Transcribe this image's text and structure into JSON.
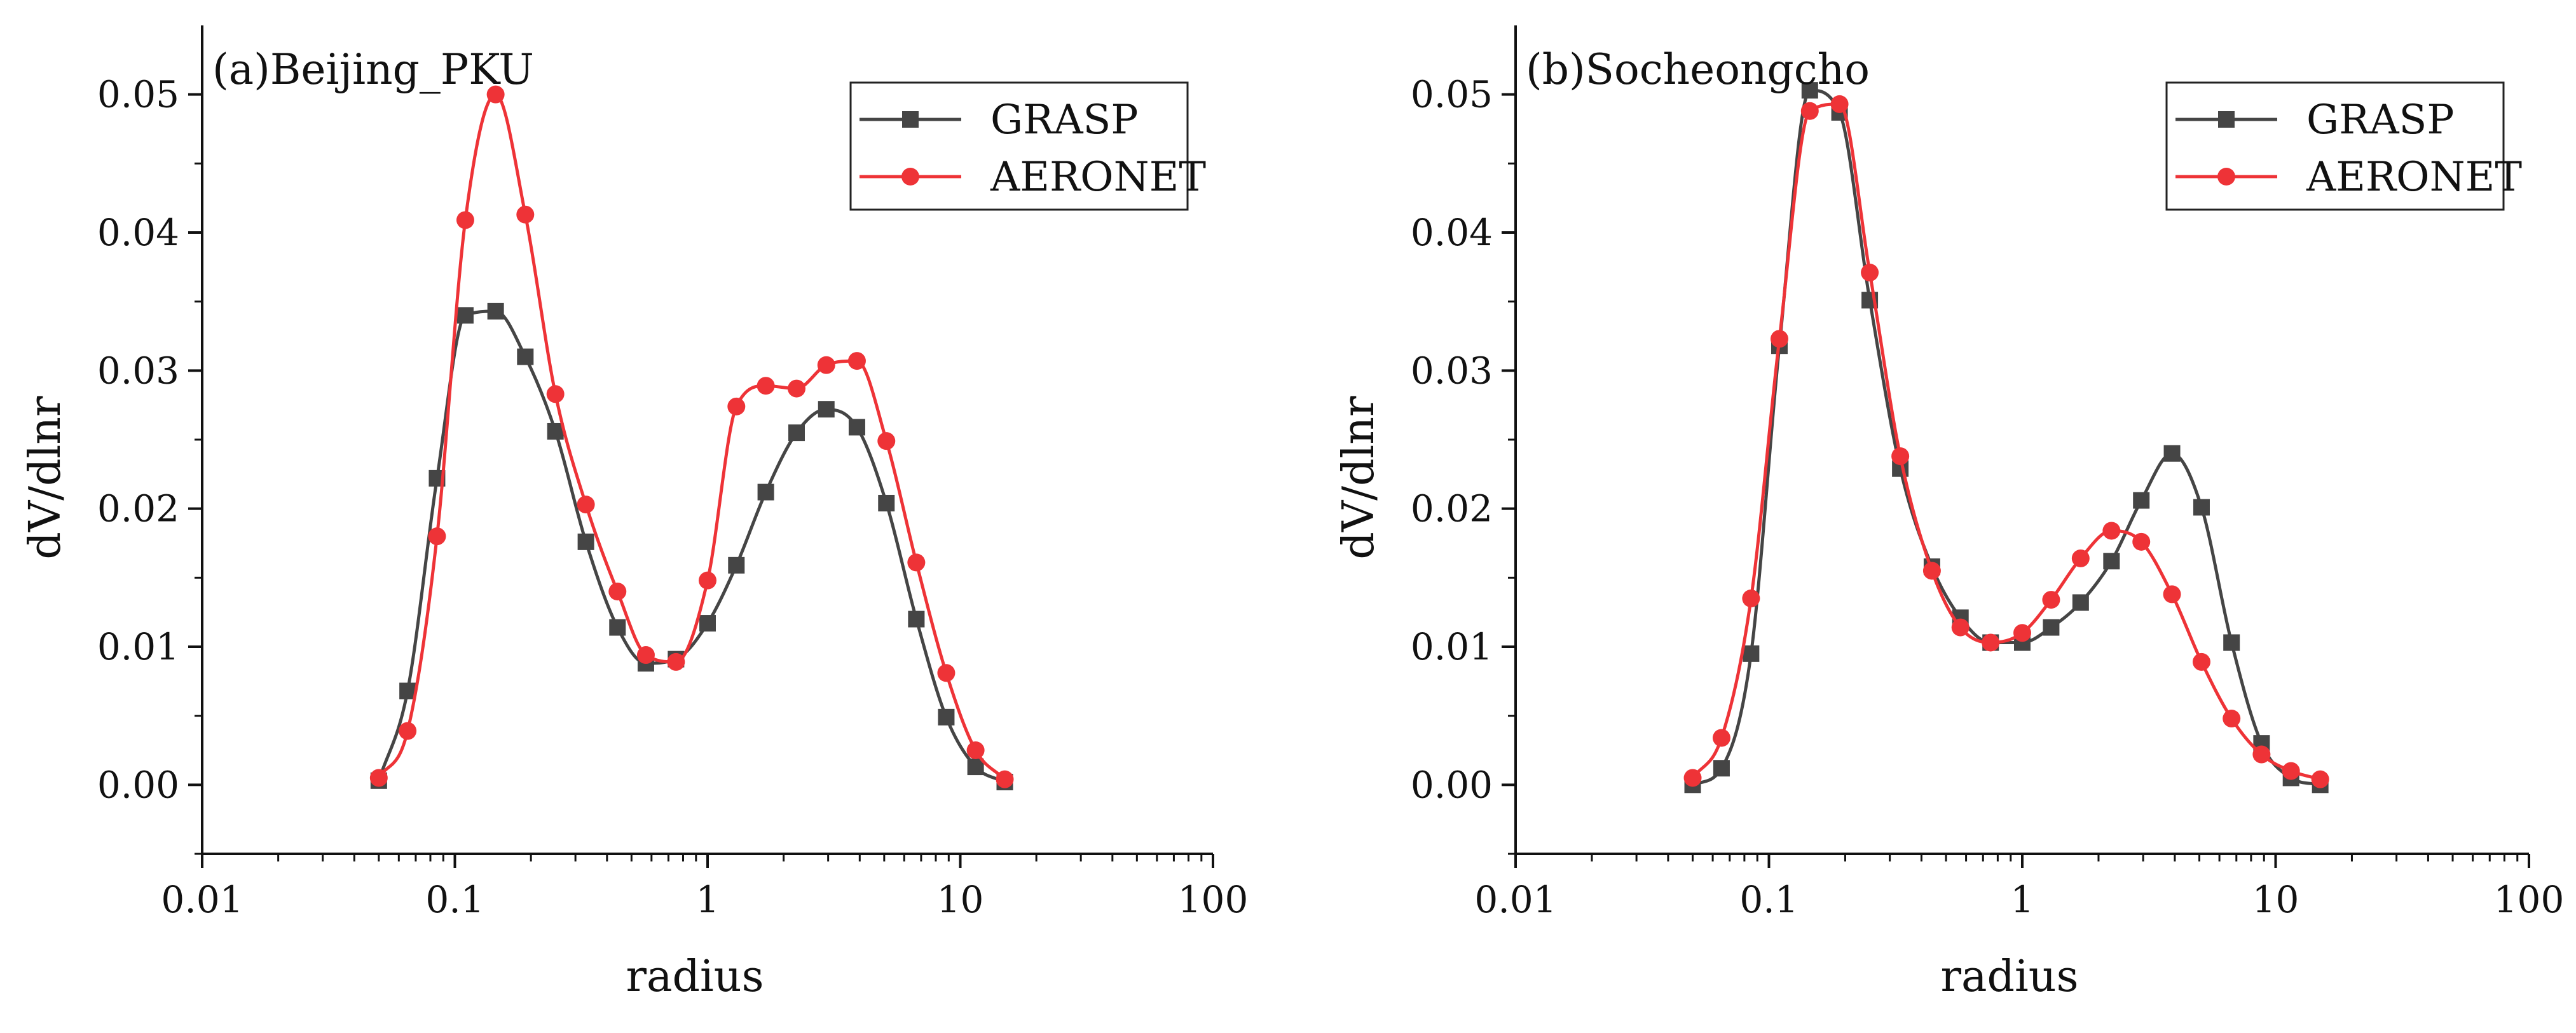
{
  "colors": {
    "grasp": "#454545",
    "aeronet": "#ee3337",
    "axis": "#111111"
  },
  "chart_data": [
    {
      "type": "line",
      "title": "(a)Beijing_PKU",
      "xlabel": "radius",
      "ylabel": "dV/dlnr",
      "xscale": "log",
      "xlim": [
        0.01,
        100
      ],
      "ylim": [
        -0.005,
        0.055
      ],
      "x_ticks": [
        0.01,
        0.1,
        1,
        10,
        100
      ],
      "x_tick_labels": [
        "0.01",
        "0.1",
        "1",
        "10",
        "100"
      ],
      "y_ticks": [
        0.0,
        0.01,
        0.02,
        0.03,
        0.04,
        0.05
      ],
      "y_tick_labels": [
        "0.00",
        "0.01",
        "0.02",
        "0.03",
        "0.04",
        "0.05"
      ],
      "legend_position": "top-right",
      "series": [
        {
          "name": "GRASP",
          "color_key": "grasp",
          "marker": "square",
          "x": [
            0.05,
            0.065,
            0.085,
            0.11,
            0.145,
            0.19,
            0.25,
            0.33,
            0.44,
            0.57,
            0.75,
            1.0,
            1.3,
            1.7,
            2.25,
            2.95,
            3.9,
            5.1,
            6.7,
            8.8,
            11.5,
            15.0
          ],
          "values": [
            0.0003,
            0.0068,
            0.0222,
            0.034,
            0.0343,
            0.031,
            0.0256,
            0.0176,
            0.0114,
            0.0088,
            0.0091,
            0.0117,
            0.0159,
            0.0212,
            0.0255,
            0.0272,
            0.0259,
            0.0204,
            0.012,
            0.0049,
            0.0013,
            0.0002
          ]
        },
        {
          "name": "AERONET",
          "color_key": "aeronet",
          "marker": "circle",
          "x": [
            0.05,
            0.065,
            0.085,
            0.11,
            0.145,
            0.19,
            0.25,
            0.33,
            0.44,
            0.57,
            0.75,
            1.0,
            1.3,
            1.7,
            2.25,
            2.95,
            3.9,
            5.1,
            6.7,
            8.8,
            11.5,
            15.0
          ],
          "values": [
            0.0005,
            0.0039,
            0.018,
            0.0409,
            0.05,
            0.0413,
            0.0283,
            0.0203,
            0.014,
            0.0094,
            0.0089,
            0.0148,
            0.0274,
            0.0289,
            0.0287,
            0.0304,
            0.0307,
            0.0249,
            0.0161,
            0.0081,
            0.0025,
            0.0004
          ]
        }
      ]
    },
    {
      "type": "line",
      "title": "(b)Socheongcho",
      "xlabel": "radius",
      "ylabel": "dV/dlnr",
      "xscale": "log",
      "xlim": [
        0.01,
        100
      ],
      "ylim": [
        -0.005,
        0.055
      ],
      "x_ticks": [
        0.01,
        0.1,
        1,
        10,
        100
      ],
      "x_tick_labels": [
        "0.01",
        "0.1",
        "1",
        "10",
        "100"
      ],
      "y_ticks": [
        0.0,
        0.01,
        0.02,
        0.03,
        0.04,
        0.05
      ],
      "y_tick_labels": [
        "0.00",
        "0.01",
        "0.02",
        "0.03",
        "0.04",
        "0.05"
      ],
      "legend_position": "top-right",
      "series": [
        {
          "name": "GRASP",
          "color_key": "grasp",
          "marker": "square",
          "x": [
            0.05,
            0.065,
            0.085,
            0.11,
            0.145,
            0.19,
            0.25,
            0.33,
            0.44,
            0.57,
            0.75,
            1.0,
            1.3,
            1.7,
            2.25,
            2.95,
            3.9,
            5.1,
            6.7,
            8.8,
            11.5,
            15.0
          ],
          "values": [
            0.0,
            0.0012,
            0.0095,
            0.0318,
            0.0503,
            0.0487,
            0.0351,
            0.0229,
            0.0158,
            0.0121,
            0.0103,
            0.0103,
            0.0114,
            0.0132,
            0.0162,
            0.0206,
            0.024,
            0.0201,
            0.0103,
            0.003,
            0.0005,
            0.0
          ]
        },
        {
          "name": "AERONET",
          "color_key": "aeronet",
          "marker": "circle",
          "x": [
            0.05,
            0.065,
            0.085,
            0.11,
            0.145,
            0.19,
            0.25,
            0.33,
            0.44,
            0.57,
            0.75,
            1.0,
            1.3,
            1.7,
            2.25,
            2.95,
            3.9,
            5.1,
            6.7,
            8.8,
            11.5,
            15.0
          ],
          "values": [
            0.0005,
            0.0034,
            0.0135,
            0.0323,
            0.0488,
            0.0493,
            0.0371,
            0.0238,
            0.0155,
            0.0114,
            0.0103,
            0.011,
            0.0134,
            0.0164,
            0.0184,
            0.0176,
            0.0138,
            0.0089,
            0.0048,
            0.0022,
            0.001,
            0.0004
          ]
        }
      ]
    }
  ]
}
